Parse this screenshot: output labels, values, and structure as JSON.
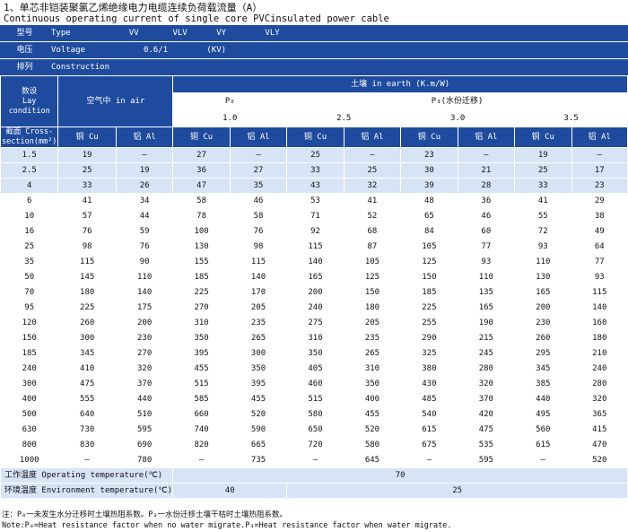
{
  "title": "1、单芯非铠装聚氯乙烯绝缘电力电缆连续负荷载流量（A）",
  "subtitle": "Continuous operating current of single core PVCinsulated power cable",
  "type_row": {
    "label": "型号",
    "text": "Type            VV       VLV      VY        VLY"
  },
  "voltage_row": {
    "label": "电压",
    "text": "Voltage            0.6/1        (KV)"
  },
  "construction_row": {
    "label": "排列",
    "text": "Construction"
  },
  "headers": {
    "laying": "数设\nLay condition",
    "air": "空气中  in air",
    "earth": "土壤   in earth (K.m/W)",
    "p0": "P₀",
    "p3": "P₃(水份迁移)",
    "r1": "1.0",
    "r2": "2.5",
    "r3": "3.0",
    "r4": "3.5",
    "section": "截面 Cross-section(mm²)",
    "cu": "铜 Cu",
    "al": "铝 Al"
  },
  "rows": [
    [
      "1.5",
      "19",
      "—",
      "27",
      "—",
      "25",
      "—",
      "23",
      "—",
      "19",
      "—"
    ],
    [
      "2.5",
      "25",
      "19",
      "36",
      "27",
      "33",
      "25",
      "30",
      "21",
      "25",
      "17"
    ],
    [
      "4",
      "33",
      "26",
      "47",
      "35",
      "43",
      "32",
      "39",
      "28",
      "33",
      "23"
    ],
    [
      "6",
      "41",
      "34",
      "58",
      "46",
      "53",
      "41",
      "48",
      "36",
      "41",
      "29"
    ],
    [
      "10",
      "57",
      "44",
      "78",
      "58",
      "71",
      "52",
      "65",
      "46",
      "55",
      "38"
    ],
    [
      "16",
      "76",
      "59",
      "100",
      "76",
      "92",
      "68",
      "84",
      "60",
      "72",
      "49"
    ],
    [
      "25",
      "98",
      "76",
      "130",
      "98",
      "115",
      "87",
      "105",
      "77",
      "93",
      "64"
    ],
    [
      "35",
      "115",
      "90",
      "155",
      "115",
      "140",
      "105",
      "125",
      "93",
      "110",
      "77"
    ],
    [
      "50",
      "145",
      "110",
      "185",
      "140",
      "165",
      "125",
      "150",
      "110",
      "130",
      "93"
    ],
    [
      "70",
      "180",
      "140",
      "225",
      "170",
      "200",
      "150",
      "185",
      "135",
      "165",
      "115"
    ],
    [
      "95",
      "225",
      "175",
      "270",
      "205",
      "240",
      "180",
      "225",
      "165",
      "200",
      "140"
    ],
    [
      "120",
      "260",
      "200",
      "310",
      "235",
      "275",
      "205",
      "255",
      "190",
      "230",
      "160"
    ],
    [
      "150",
      "300",
      "230",
      "350",
      "265",
      "310",
      "235",
      "290",
      "215",
      "260",
      "180"
    ],
    [
      "185",
      "345",
      "270",
      "395",
      "300",
      "350",
      "265",
      "325",
      "245",
      "295",
      "210"
    ],
    [
      "240",
      "410",
      "320",
      "455",
      "350",
      "405",
      "310",
      "380",
      "280",
      "345",
      "240"
    ],
    [
      "300",
      "475",
      "370",
      "515",
      "395",
      "460",
      "350",
      "430",
      "320",
      "385",
      "280"
    ],
    [
      "400",
      "555",
      "440",
      "585",
      "455",
      "515",
      "400",
      "485",
      "370",
      "440",
      "320"
    ],
    [
      "500",
      "640",
      "510",
      "660",
      "520",
      "580",
      "455",
      "540",
      "420",
      "495",
      "365"
    ],
    [
      "630",
      "730",
      "595",
      "740",
      "590",
      "650",
      "520",
      "615",
      "475",
      "560",
      "415"
    ],
    [
      "800",
      "830",
      "690",
      "820",
      "665",
      "720",
      "580",
      "675",
      "535",
      "615",
      "470"
    ],
    [
      "1000",
      "—",
      "780",
      "—",
      "735",
      "—",
      "645",
      "—",
      "595",
      "—",
      "520"
    ]
  ],
  "op_temp": {
    "label": "工作温度 Operating temperature(℃)",
    "value": "70"
  },
  "env_temp": {
    "label": "环境温度 Environment temperature(℃)",
    "air": "40",
    "earth": "25"
  },
  "notes": {
    "line1": "注：P₀一未发生水分迁移时土壤热阻系数。P₃一水份迁移土壤干枯时土壤热阻系数。",
    "line2": "Note:P₀=Heat resistance factor when no water migrate.P₃=Heat resistance factor when water migrate."
  },
  "colors": {
    "header_blue": "#1f4b9e",
    "light_blue": "#d7e4f6"
  }
}
